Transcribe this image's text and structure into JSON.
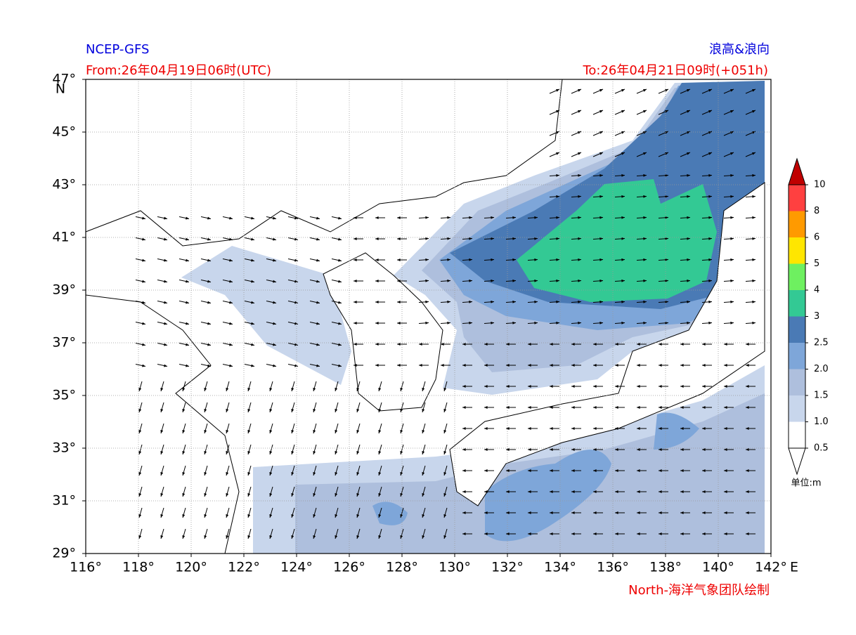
{
  "header": {
    "source": "NCEP-GFS",
    "title": "浪高&浪向",
    "from": "From:26年04月19日06时(UTC)",
    "to": "To:26年04月21日09时(+051h)"
  },
  "map": {
    "xlim": [
      116,
      142
    ],
    "ylim": [
      29,
      47
    ],
    "xticks": [
      {
        "value": 116,
        "label": "116°"
      },
      {
        "value": 118,
        "label": "118°"
      },
      {
        "value": 120,
        "label": "120°"
      },
      {
        "value": 122,
        "label": "122°"
      },
      {
        "value": 124,
        "label": "124°"
      },
      {
        "value": 126,
        "label": "126°"
      },
      {
        "value": 128,
        "label": "128°"
      },
      {
        "value": 130,
        "label": "130°"
      },
      {
        "value": 132,
        "label": "132°"
      },
      {
        "value": 134,
        "label": "134°"
      },
      {
        "value": 136,
        "label": "136°"
      },
      {
        "value": 138,
        "label": "138°"
      },
      {
        "value": 140,
        "label": "140°"
      },
      {
        "value": 142,
        "label": "142°"
      }
    ],
    "yticks": [
      {
        "value": 29,
        "label": "29°"
      },
      {
        "value": 31,
        "label": "31°"
      },
      {
        "value": 33,
        "label": "33°"
      },
      {
        "value": 35,
        "label": "35°"
      },
      {
        "value": 37,
        "label": "37°"
      },
      {
        "value": 39,
        "label": "39°"
      },
      {
        "value": 41,
        "label": "41°"
      },
      {
        "value": 43,
        "label": "43°"
      },
      {
        "value": 45,
        "label": "45°"
      },
      {
        "value": 47,
        "label": "47°"
      }
    ],
    "x_unit": "E",
    "y_unit": "N",
    "grid": true
  },
  "colorbar": {
    "levels": [
      0.5,
      {
        "value": 1,
        "label": "1.0"
      },
      1.5,
      {
        "value": 2,
        "label": "2.0"
      },
      2.5,
      3,
      4,
      5,
      6,
      8,
      10
    ],
    "colors": [
      "#ffffff",
      "#c8d6ec",
      "#aebfdd",
      "#7ea6d9",
      "#4a7ab5",
      "#33c994",
      "#6ef060",
      "#ffe600",
      "#ff9a00",
      "#ff4040"
    ],
    "under_color": "#ffffff",
    "over_color": "#c00000",
    "unit": "单位:m"
  },
  "footer": "North-海洋气象团队绘制"
}
